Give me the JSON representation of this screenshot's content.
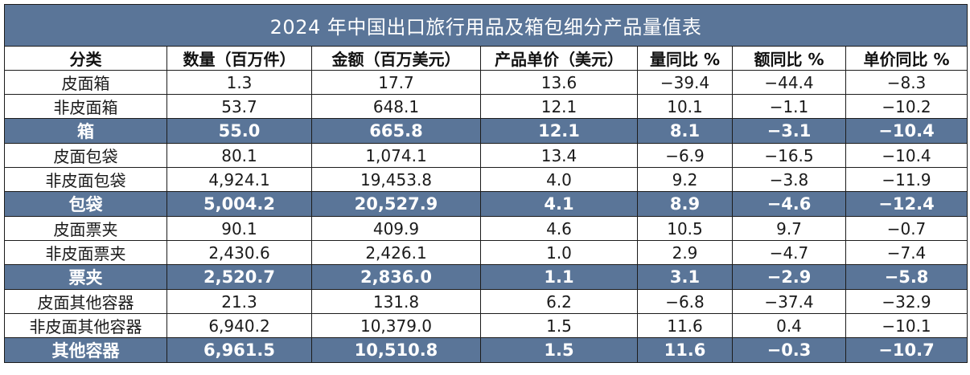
{
  "title": "2024 年中国出口旅行用品及箱包细分产品量值表",
  "headers": [
    "分类",
    "数量（百万件）",
    "金额（百万美元）",
    "产品单价（美元）",
    "量同比 %",
    "额同比 %",
    "单价同比 %"
  ],
  "rows": [
    {
      "kind": "sub",
      "cells": [
        "皮面箱",
        "1.3",
        "17.7",
        "13.6",
        "−39.4",
        "−44.4",
        "−8.3"
      ]
    },
    {
      "kind": "sub",
      "cells": [
        "非皮面箱",
        "53.7",
        "648.1",
        "12.1",
        "10.1",
        "−1.1",
        "−10.2"
      ]
    },
    {
      "kind": "total",
      "cells": [
        "箱",
        "55.0",
        "665.8",
        "12.1",
        "8.1",
        "−3.1",
        "−10.4"
      ]
    },
    {
      "kind": "sub",
      "cells": [
        "皮面包袋",
        "80.1",
        "1,074.1",
        "13.4",
        "−6.9",
        "−16.5",
        "−10.4"
      ]
    },
    {
      "kind": "sub",
      "cells": [
        "非皮面包袋",
        "4,924.1",
        "19,453.8",
        "4.0",
        "9.2",
        "−3.8",
        "−11.9"
      ]
    },
    {
      "kind": "total",
      "cells": [
        "包袋",
        "5,004.2",
        "20,527.9",
        "4.1",
        "8.9",
        "−4.6",
        "−12.4"
      ]
    },
    {
      "kind": "sub",
      "cells": [
        "皮面票夹",
        "90.1",
        "409.9",
        "4.6",
        "10.5",
        "9.7",
        "−0.7"
      ]
    },
    {
      "kind": "sub",
      "cells": [
        "非皮面票夹",
        "2,430.6",
        "2,426.1",
        "1.0",
        "2.9",
        "−4.7",
        "−7.4"
      ]
    },
    {
      "kind": "total",
      "cells": [
        "票夹",
        "2,520.7",
        "2,836.0",
        "1.1",
        "3.1",
        "−2.9",
        "−5.8"
      ]
    },
    {
      "kind": "sub",
      "cells": [
        "皮面其他容器",
        "21.3",
        "131.8",
        "6.2",
        "−6.8",
        "−37.4",
        "−32.9"
      ]
    },
    {
      "kind": "sub",
      "cells": [
        "非皮面其他容器",
        "6,940.2",
        "10,379.0",
        "1.5",
        "11.6",
        "0.4",
        "−10.1"
      ]
    },
    {
      "kind": "total",
      "cells": [
        "其他容器",
        "6,961.5",
        "10,510.8",
        "1.5",
        "11.6",
        "−0.3",
        "−10.7"
      ]
    }
  ],
  "colors": {
    "header_fill": "#5a7598",
    "header_text": "#ffffff",
    "border": "#1c1c1c"
  }
}
